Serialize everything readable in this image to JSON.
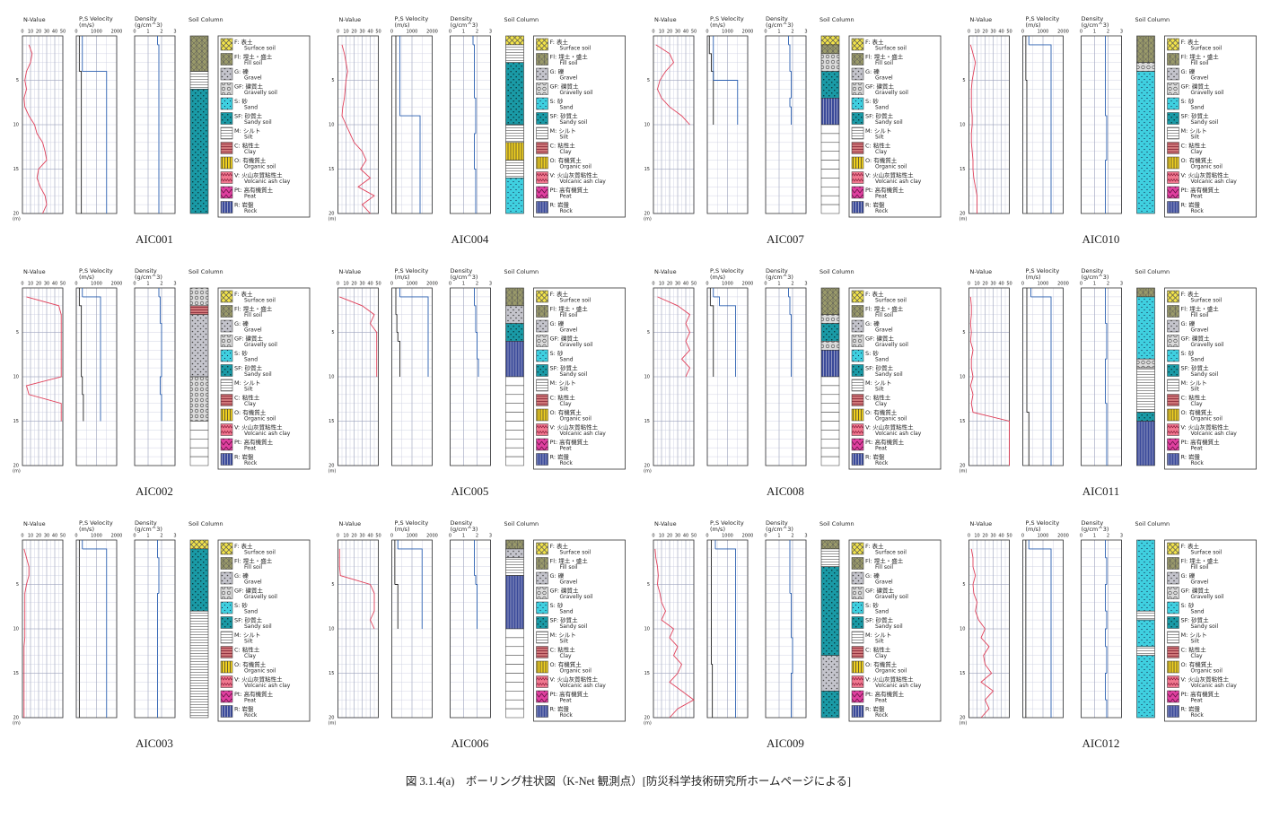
{
  "caption": "図 3.1.4(a)　ボーリング柱状図（K-Net 観測点）[防災科学技術研究所ホームページによる]",
  "headers": {
    "n_value": "N-Value",
    "velocity": "P,S Velocity",
    "velocity_unit": "(m/s)",
    "density": "Density",
    "density_unit": "(g/cm^3)",
    "soil": "Soil Column"
  },
  "axes": {
    "depth_lim": [
      0,
      20
    ],
    "depth_ticks": [
      5,
      10,
      15,
      20
    ],
    "depth_unit": "(m)",
    "n_lim": [
      0,
      50
    ],
    "n_ticks": [
      0,
      10,
      20,
      30,
      40,
      50
    ],
    "v_lim": [
      0,
      2000
    ],
    "v_ticks": [
      0,
      1000,
      2000
    ],
    "d_lim": [
      0,
      3
    ],
    "d_ticks": [
      0,
      1,
      2,
      3
    ]
  },
  "colors": {
    "n_value": "#e0405a",
    "vs": "#222222",
    "vp": "#2a5fb0",
    "density": "#2a5fb0"
  },
  "legend": [
    {
      "code": "F:",
      "ja": "表土",
      "en": "Surface soil",
      "color": "#f2e34a"
    },
    {
      "code": "Fl:",
      "ja": "埋土・盛土",
      "en": "Fill soil",
      "color": "#9a9a6a"
    },
    {
      "code": "G:",
      "ja": "礫",
      "en": "Gravel",
      "color": "#c4c4cc"
    },
    {
      "code": "GF:",
      "ja": "礫質土",
      "en": "Gravelly soil",
      "color": "#dcdcdc"
    },
    {
      "code": "S:",
      "ja": "砂",
      "en": "Sand",
      "color": "#3fd0e0"
    },
    {
      "code": "SF:",
      "ja": "砂質土",
      "en": "Sandy soil",
      "color": "#1a9aa6"
    },
    {
      "code": "M:",
      "ja": "シルト",
      "en": "Silt",
      "color": "#ffffff"
    },
    {
      "code": "C:",
      "ja": "粘性土",
      "en": "Clay",
      "color": "#d0787a"
    },
    {
      "code": "O:",
      "ja": "有機質土",
      "en": "Organic soil",
      "color": "#f0d020"
    },
    {
      "code": "V:",
      "ja": "火山灰質粘性土",
      "en": "Volcanic ash clay",
      "color": "#f07890"
    },
    {
      "code": "Pt:",
      "ja": "高有機質土",
      "en": "Peat",
      "color": "#e040a0"
    },
    {
      "code": "R:",
      "ja": "岩盤",
      "en": "Rock",
      "color": "#3a4a9a"
    }
  ],
  "chart_data": [
    {
      "type": "boring-log",
      "title": "AIC001",
      "n_value": [
        8,
        12,
        10,
        5,
        3,
        5,
        2,
        3,
        8,
        15,
        18,
        25,
        28,
        30,
        20,
        18,
        22,
        28,
        30,
        25
      ],
      "vs": [
        150,
        150,
        150,
        150,
        250,
        250,
        250,
        250,
        250,
        250,
        250,
        250,
        250,
        250,
        250,
        250,
        250,
        250,
        250,
        250
      ],
      "vp": [
        300,
        300,
        300,
        300,
        1500,
        1500,
        1500,
        1500,
        1500,
        1500,
        1500,
        1500,
        1500,
        1500,
        1500,
        1500,
        1500,
        1500,
        1500,
        1500
      ],
      "density": [
        1.7,
        1.8,
        1.8,
        1.8,
        1.8,
        1.8,
        1.8,
        1.8,
        1.8,
        1.8,
        1.8,
        1.8,
        1.8,
        1.8,
        1.8,
        1.8,
        1.8,
        1.8,
        1.8,
        1.8
      ],
      "layers": [
        {
          "legend": 1,
          "top": 0,
          "bottom": 4
        },
        {
          "legend": 6,
          "top": 4,
          "bottom": 6
        },
        {
          "legend": 5,
          "top": 6,
          "bottom": 20
        }
      ]
    },
    {
      "type": "boring-log",
      "title": "AIC004",
      "n_value": [
        5,
        8,
        10,
        12,
        10,
        9,
        8,
        6,
        5,
        10,
        15,
        20,
        30,
        35,
        28,
        40,
        25,
        45,
        30,
        40
      ],
      "vs": [
        200,
        200,
        200,
        200,
        200,
        200,
        200,
        200,
        200,
        200,
        200,
        200,
        200,
        200,
        200,
        200,
        200,
        200,
        200,
        200
      ],
      "vp": [
        400,
        400,
        400,
        400,
        400,
        400,
        400,
        400,
        400,
        1400,
        1400,
        1400,
        1400,
        1400,
        1400,
        1400,
        1400,
        1400,
        1400,
        1400
      ],
      "density": [
        1.7,
        1.8,
        1.8,
        1.8,
        1.8,
        1.8,
        1.8,
        1.9,
        1.9,
        1.9,
        1.9,
        1.8,
        1.8,
        1.8,
        1.8,
        1.9,
        1.9,
        1.9,
        1.9,
        1.9
      ],
      "layers": [
        {
          "legend": 0,
          "top": 0,
          "bottom": 1
        },
        {
          "legend": 6,
          "top": 1,
          "bottom": 3
        },
        {
          "legend": 5,
          "top": 3,
          "bottom": 10
        },
        {
          "legend": 6,
          "top": 10,
          "bottom": 12
        },
        {
          "legend": 8,
          "top": 12,
          "bottom": 14
        },
        {
          "legend": 6,
          "top": 14,
          "bottom": 16
        },
        {
          "legend": 4,
          "top": 16,
          "bottom": 20
        }
      ]
    },
    {
      "type": "boring-log",
      "title": "AIC007",
      "n_value": [
        3,
        20,
        25,
        15,
        8,
        5,
        10,
        20,
        35,
        45
      ],
      "vs": [
        100,
        100,
        200,
        200,
        300,
        300,
        300,
        300,
        300,
        300
      ],
      "vp": [
        300,
        300,
        300,
        300,
        300,
        1500,
        1500,
        1500,
        1500,
        1500
      ],
      "density": [
        1.7,
        1.8,
        1.8,
        1.8,
        1.9,
        1.9,
        1.9,
        1.8,
        1.9,
        1.9
      ],
      "layers": [
        {
          "legend": 0,
          "top": 0,
          "bottom": 1
        },
        {
          "legend": 1,
          "top": 1,
          "bottom": 2
        },
        {
          "legend": 3,
          "top": 2,
          "bottom": 4
        },
        {
          "legend": 5,
          "top": 4,
          "bottom": 7
        },
        {
          "legend": 11,
          "top": 7,
          "bottom": 10
        }
      ]
    },
    {
      "type": "boring-log",
      "title": "AIC010",
      "n_value": [
        2,
        5,
        8,
        6,
        4,
        3,
        3,
        3,
        4,
        4,
        3,
        3,
        4,
        5,
        5,
        6,
        8,
        10,
        10,
        10
      ],
      "vs": [
        150,
        150,
        150,
        150,
        150,
        200,
        200,
        200,
        200,
        200,
        200,
        200,
        200,
        200,
        200,
        200,
        200,
        200,
        200,
        200
      ],
      "vp": [
        300,
        1400,
        1400,
        1400,
        1400,
        1400,
        1400,
        1400,
        1400,
        1400,
        1400,
        1400,
        1400,
        1400,
        1400,
        1400,
        1400,
        1400,
        1400,
        1400
      ],
      "density": [
        1.8,
        1.8,
        1.8,
        1.8,
        1.8,
        1.8,
        1.8,
        1.8,
        1.8,
        1.9,
        1.9,
        1.9,
        1.9,
        1.9,
        1.8,
        1.8,
        1.8,
        1.8,
        1.8,
        1.8
      ],
      "layers": [
        {
          "legend": 1,
          "top": 0,
          "bottom": 3
        },
        {
          "legend": 3,
          "top": 3,
          "bottom": 4
        },
        {
          "legend": 4,
          "top": 4,
          "bottom": 20
        }
      ]
    },
    {
      "type": "boring-log",
      "title": "AIC002",
      "n_value": [
        5,
        45,
        48,
        48,
        48,
        48,
        48,
        48,
        48,
        48,
        5,
        8,
        48,
        48,
        48
      ],
      "vs": [
        150,
        150,
        250,
        250,
        250,
        250,
        250,
        250,
        250,
        250,
        300,
        300,
        350,
        350,
        350
      ],
      "vp": [
        300,
        1200,
        1200,
        1200,
        1200,
        1200,
        1200,
        1200,
        1200,
        1200,
        1200,
        1200,
        1200,
        1200,
        1200
      ],
      "density": [
        1.8,
        1.9,
        1.9,
        1.9,
        2.0,
        2.0,
        2.0,
        2.0,
        2.0,
        2.0,
        1.9,
        1.9,
        2.0,
        2.0,
        2.0
      ],
      "layers": [
        {
          "legend": 3,
          "top": 0,
          "bottom": 2
        },
        {
          "legend": 7,
          "top": 2,
          "bottom": 3
        },
        {
          "legend": 2,
          "top": 3,
          "bottom": 10
        },
        {
          "legend": 3,
          "top": 10,
          "bottom": 15
        }
      ]
    },
    {
      "type": "boring-log",
      "title": "AIC005",
      "n_value": [
        2,
        30,
        45,
        40,
        48,
        48,
        48,
        48,
        48,
        48
      ],
      "vs": [
        200,
        200,
        200,
        250,
        250,
        300,
        400,
        400,
        400,
        400
      ],
      "vp": [
        400,
        1800,
        1800,
        1800,
        1800,
        1800,
        1800,
        1800,
        1800,
        1800
      ],
      "density": [
        1.8,
        1.8,
        1.9,
        1.9,
        1.9,
        2.0,
        2.0,
        2.0,
        2.1,
        2.1
      ],
      "layers": [
        {
          "legend": 1,
          "top": 0,
          "bottom": 2
        },
        {
          "legend": 2,
          "top": 2,
          "bottom": 4
        },
        {
          "legend": 5,
          "top": 4,
          "bottom": 6
        },
        {
          "legend": 11,
          "top": 6,
          "bottom": 10
        }
      ]
    },
    {
      "type": "boring-log",
      "title": "AIC008",
      "n_value": [
        5,
        30,
        45,
        40,
        45,
        40,
        45,
        35,
        45,
        40
      ],
      "vs": [
        150,
        150,
        300,
        300,
        300,
        300,
        300,
        300,
        300,
        300
      ],
      "vp": [
        300,
        600,
        1400,
        1400,
        1400,
        1400,
        1400,
        1400,
        1400,
        1400
      ],
      "density": [
        1.7,
        1.8,
        1.8,
        1.9,
        1.9,
        1.9,
        1.9,
        1.9,
        1.9,
        1.9
      ],
      "layers": [
        {
          "legend": 1,
          "top": 0,
          "bottom": 3
        },
        {
          "legend": 3,
          "top": 3,
          "bottom": 4
        },
        {
          "legend": 5,
          "top": 4,
          "bottom": 6
        },
        {
          "legend": 3,
          "top": 6,
          "bottom": 7
        },
        {
          "legend": 11,
          "top": 7,
          "bottom": 10
        }
      ]
    },
    {
      "type": "boring-log",
      "title": "AIC011",
      "n_value": [
        2,
        3,
        3,
        2,
        3,
        2,
        5,
        3,
        3,
        5,
        2,
        5,
        3,
        5,
        50,
        50,
        50,
        50,
        50,
        50
      ],
      "vs": [
        200,
        200,
        200,
        200,
        200,
        200,
        200,
        200,
        200,
        200,
        200,
        200,
        200,
        200,
        300,
        300,
        300,
        300,
        300,
        300
      ],
      "vp": [
        400,
        1400,
        1400,
        1400,
        1400,
        1400,
        1400,
        1400,
        1400,
        1400,
        1400,
        1400,
        1400,
        1400,
        1400,
        1400,
        1400,
        1400,
        1400,
        1400
      ],
      "density": [
        1.8,
        1.8,
        1.8,
        1.8,
        1.9,
        1.9,
        1.9,
        1.9,
        1.8,
        1.8,
        1.8,
        1.8,
        1.8,
        1.9,
        1.9,
        1.9,
        1.9,
        1.9,
        1.9,
        1.9
      ],
      "layers": [
        {
          "legend": 1,
          "top": 0,
          "bottom": 1
        },
        {
          "legend": 4,
          "top": 1,
          "bottom": 8
        },
        {
          "legend": 3,
          "top": 8,
          "bottom": 9
        },
        {
          "legend": 6,
          "top": 9,
          "bottom": 14
        },
        {
          "legend": 5,
          "top": 14,
          "bottom": 15
        },
        {
          "legend": 11,
          "top": 15,
          "bottom": 20
        }
      ]
    },
    {
      "type": "boring-log",
      "title": "AIC003",
      "n_value": [
        2,
        5,
        8,
        8,
        5,
        3,
        3,
        3,
        3,
        3,
        3,
        2,
        2,
        2,
        2,
        2,
        2,
        2,
        2,
        2
      ],
      "vs": [
        150,
        150,
        150,
        150,
        150,
        150,
        150,
        150,
        150,
        150,
        150,
        150,
        150,
        150,
        150,
        150,
        150,
        150,
        150,
        150
      ],
      "vp": [
        300,
        1500,
        1500,
        1500,
        1500,
        1500,
        1500,
        1500,
        1500,
        1500,
        1500,
        1500,
        1500,
        1500,
        1500,
        1500,
        1500,
        1500,
        1500,
        1500
      ],
      "density": [
        1.7,
        1.7,
        1.8,
        1.8,
        1.8,
        1.8,
        1.7,
        1.7,
        1.7,
        1.7,
        1.7,
        1.7,
        1.7,
        1.7,
        1.7,
        1.7,
        1.7,
        1.7,
        1.7,
        1.7
      ],
      "layers": [
        {
          "legend": 0,
          "top": 0,
          "bottom": 1
        },
        {
          "legend": 5,
          "top": 1,
          "bottom": 8
        },
        {
          "legend": 6,
          "top": 8,
          "bottom": 20
        }
      ]
    },
    {
      "type": "boring-log",
      "title": "AIC006",
      "n_value": [
        2,
        2,
        2,
        3,
        40,
        45,
        45,
        45,
        40,
        45
      ],
      "vs": [
        150,
        150,
        150,
        150,
        150,
        300,
        300,
        300,
        300,
        300
      ],
      "vp": [
        300,
        1500,
        1500,
        1500,
        1500,
        1500,
        1500,
        1500,
        1500,
        1500
      ],
      "density": [
        1.8,
        1.8,
        1.8,
        1.8,
        1.9,
        2.0,
        2.0,
        2.0,
        2.0,
        2.0
      ],
      "layers": [
        {
          "legend": 1,
          "top": 0,
          "bottom": 1
        },
        {
          "legend": 2,
          "top": 1,
          "bottom": 2
        },
        {
          "legend": 6,
          "top": 2,
          "bottom": 4
        },
        {
          "legend": 11,
          "top": 4,
          "bottom": 10
        }
      ]
    },
    {
      "type": "boring-log",
      "title": "AIC009",
      "n_value": [
        2,
        3,
        5,
        6,
        5,
        8,
        10,
        15,
        10,
        25,
        20,
        30,
        25,
        35,
        30,
        20,
        35,
        50,
        30,
        20
      ],
      "vs": [
        200,
        200,
        200,
        200,
        200,
        200,
        200,
        200,
        200,
        200,
        200,
        200,
        200,
        200,
        250,
        250,
        250,
        250,
        250,
        250
      ],
      "vp": [
        400,
        1400,
        1400,
        1400,
        1400,
        1400,
        1400,
        1400,
        1400,
        1400,
        1400,
        1400,
        1400,
        1400,
        1400,
        1400,
        1400,
        1400,
        1400,
        1400
      ],
      "density": [
        1.8,
        1.8,
        1.8,
        1.8,
        1.8,
        1.8,
        1.9,
        1.9,
        1.9,
        1.9,
        1.9,
        2.0,
        2.0,
        2.0,
        2.0,
        1.9,
        1.9,
        1.9,
        1.9,
        1.9
      ],
      "layers": [
        {
          "legend": 1,
          "top": 0,
          "bottom": 1
        },
        {
          "legend": 6,
          "top": 1,
          "bottom": 3
        },
        {
          "legend": 5,
          "top": 3,
          "bottom": 13
        },
        {
          "legend": 2,
          "top": 13,
          "bottom": 17
        },
        {
          "legend": 5,
          "top": 17,
          "bottom": 20
        }
      ]
    },
    {
      "type": "boring-log",
      "title": "AIC012",
      "n_value": [
        3,
        5,
        5,
        8,
        5,
        6,
        10,
        8,
        12,
        20,
        15,
        25,
        18,
        20,
        28,
        15,
        30,
        20,
        25,
        15
      ],
      "vs": [
        150,
        150,
        150,
        150,
        150,
        150,
        150,
        150,
        150,
        150,
        150,
        150,
        150,
        150,
        150,
        150,
        150,
        150,
        150,
        150
      ],
      "vp": [
        300,
        1400,
        1400,
        1400,
        1400,
        1400,
        1400,
        1400,
        1400,
        1400,
        1400,
        1400,
        1400,
        1400,
        1400,
        1400,
        1400,
        1400,
        1400,
        1400
      ],
      "density": [
        1.8,
        1.8,
        1.9,
        1.9,
        1.9,
        1.8,
        1.8,
        1.8,
        1.9,
        1.9,
        1.8,
        1.8,
        1.9,
        1.9,
        1.9,
        1.8,
        1.8,
        1.8,
        1.9,
        1.9
      ],
      "layers": [
        {
          "legend": 4,
          "top": 0,
          "bottom": 8
        },
        {
          "legend": 6,
          "top": 8,
          "bottom": 9
        },
        {
          "legend": 4,
          "top": 9,
          "bottom": 12
        },
        {
          "legend": 6,
          "top": 12,
          "bottom": 13
        },
        {
          "legend": 4,
          "top": 13,
          "bottom": 20
        }
      ]
    }
  ]
}
